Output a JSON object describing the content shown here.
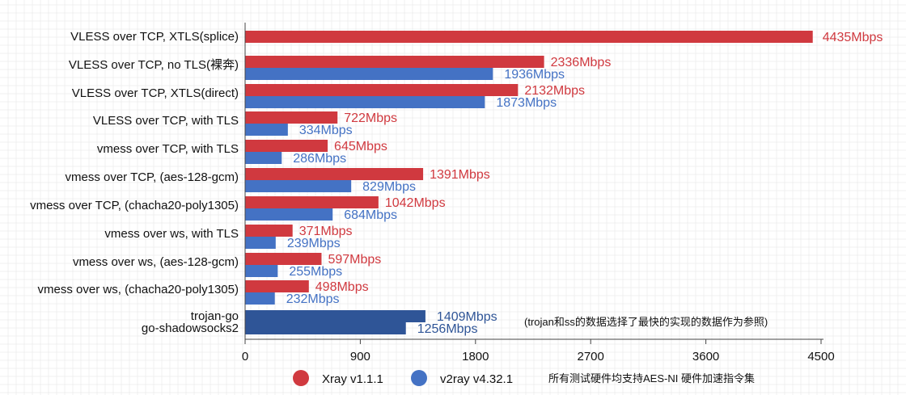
{
  "colors": {
    "xray": "#d0393f",
    "v2ray": "#4472c4",
    "single": "#2f5597",
    "grid": "#e3e3e3"
  },
  "chart_data": {
    "type": "bar",
    "orientation": "horizontal",
    "unit_suffix": "Mbps",
    "categories": [
      "VLESS over TCP, XTLS(splice)",
      "VLESS over TCP, no TLS(裸奔)",
      "VLESS over TCP, XTLS(direct)",
      "VLESS over TCP, with TLS",
      "vmess over TCP, with TLS",
      "vmess over TCP, (aes-128-gcm)",
      "vmess over TCP, (chacha20-poly1305)",
      "vmess over ws, with TLS",
      "vmess over ws, (aes-128-gcm)",
      "vmess over ws, (chacha20-poly1305)"
    ],
    "series": [
      {
        "name": "Xray v1.1.1",
        "values": [
          4435,
          2336,
          2132,
          722,
          645,
          1391,
          1042,
          371,
          597,
          498
        ]
      },
      {
        "name": "v2ray v4.32.1",
        "values": [
          null,
          1936,
          1873,
          334,
          286,
          829,
          684,
          239,
          255,
          232
        ]
      }
    ],
    "extra_bars": [
      {
        "label": "trojan-go",
        "value": 1409
      },
      {
        "label": "go-shadowsocks2",
        "value": 1256
      }
    ],
    "xlim": [
      0,
      4500
    ],
    "xticks": [
      0,
      900,
      1800,
      2700,
      3600,
      4500
    ],
    "grid": true,
    "legend_position": "bottom",
    "annotations": [
      "(trojan和ss的数据选择了最快的实现的数据作为参照)",
      "所有测试硬件均支持AES-NI 硬件加速指令集"
    ]
  }
}
